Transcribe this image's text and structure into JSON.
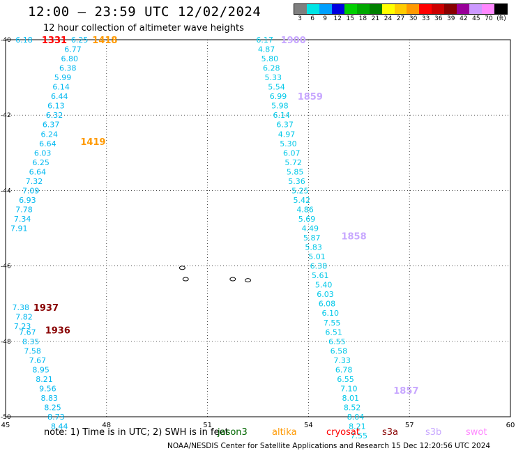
{
  "header": {
    "title": "12:00 – 23:59 UTC 12/02/2024",
    "subtitle": "12 hour collection of altimeter wave heights"
  },
  "legend": {
    "unit": "(ft)",
    "bins": [
      {
        "label": "3",
        "color": "#7f7f7f"
      },
      {
        "label": "6",
        "color": "#00e5e5"
      },
      {
        "label": "9",
        "color": "#00a0ff"
      },
      {
        "label": "12",
        "color": "#0000e0"
      },
      {
        "label": "15",
        "color": "#00d000"
      },
      {
        "label": "18",
        "color": "#00a800"
      },
      {
        "label": "21",
        "color": "#008000"
      },
      {
        "label": "24",
        "color": "#ffff00"
      },
      {
        "label": "27",
        "color": "#ffcc00"
      },
      {
        "label": "30",
        "color": "#ff9900"
      },
      {
        "label": "33",
        "color": "#ff0000"
      },
      {
        "label": "36",
        "color": "#cc0000"
      },
      {
        "label": "39",
        "color": "#880000"
      },
      {
        "label": "42",
        "color": "#990099"
      },
      {
        "label": "45",
        "color": "#cc99ff"
      },
      {
        "label": "70",
        "color": "#ff88ff"
      },
      {
        "label": "",
        "color": "#000000"
      }
    ]
  },
  "map": {
    "lon_ticks": [
      "45",
      "48",
      "51",
      "54",
      "57",
      "60"
    ],
    "lat_ticks": [
      "-40",
      "-42",
      "-44",
      "-46",
      "-48",
      "-50"
    ],
    "lon_range": [
      45,
      60
    ],
    "lat_range": [
      -40,
      -50
    ],
    "track_color": "#00c8e8",
    "time_labels": [
      {
        "text": "1331",
        "lon": 46.45,
        "lat": -40.0,
        "color": "#ff0000"
      },
      {
        "text": "1418",
        "lon": 47.95,
        "lat": -40.0,
        "color": "#ff9900"
      },
      {
        "text": "1419",
        "lon": 47.6,
        "lat": -42.7,
        "color": "#ff9900"
      },
      {
        "text": "1900",
        "lon": 53.55,
        "lat": -40.0,
        "color": "#c8a8ff"
      },
      {
        "text": "1859",
        "lon": 54.05,
        "lat": -41.5,
        "color": "#c8a8ff"
      },
      {
        "text": "1858",
        "lon": 55.35,
        "lat": -45.2,
        "color": "#c8a8ff"
      },
      {
        "text": "1857",
        "lon": 56.9,
        "lat": -49.3,
        "color": "#c8a8ff"
      },
      {
        "text": "1937",
        "lon": 46.2,
        "lat": -47.1,
        "color": "#880000"
      },
      {
        "text": "1936",
        "lon": 46.55,
        "lat": -47.7,
        "color": "#880000"
      }
    ],
    "tracks": [
      {
        "name": "",
        "color": "#00b8f0",
        "points": [
          {
            "v": "6.18",
            "lon": 45.55,
            "lat": -40.0
          },
          {
            "v": "6.25",
            "lon": 47.2,
            "lat": -40.0
          },
          {
            "v": "6.77",
            "lon": 47.0,
            "lat": -40.25
          },
          {
            "v": "6.80",
            "lon": 46.9,
            "lat": -40.5
          },
          {
            "v": "6.38",
            "lon": 46.85,
            "lat": -40.75
          },
          {
            "v": "5.99",
            "lon": 46.7,
            "lat": -41.0
          },
          {
            "v": "6.14",
            "lon": 46.65,
            "lat": -41.25
          },
          {
            "v": "6.44",
            "lon": 46.6,
            "lat": -41.5
          },
          {
            "v": "6.13",
            "lon": 46.5,
            "lat": -41.75
          },
          {
            "v": "6.32",
            "lon": 46.45,
            "lat": -42.0
          },
          {
            "v": "6.37",
            "lon": 46.35,
            "lat": -42.25
          },
          {
            "v": "6.24",
            "lon": 46.3,
            "lat": -42.5
          },
          {
            "v": "6.64",
            "lon": 46.25,
            "lat": -42.75
          },
          {
            "v": "6.03",
            "lon": 46.1,
            "lat": -43.0
          },
          {
            "v": "6.25",
            "lon": 46.05,
            "lat": -43.25
          },
          {
            "v": "6.64",
            "lon": 45.95,
            "lat": -43.5
          },
          {
            "v": "7.32",
            "lon": 45.85,
            "lat": -43.75
          },
          {
            "v": "7.09",
            "lon": 45.75,
            "lat": -44.0
          },
          {
            "v": "6.93",
            "lon": 45.65,
            "lat": -44.25
          },
          {
            "v": "7.78",
            "lon": 45.55,
            "lat": -44.5
          },
          {
            "v": "7.34",
            "lon": 45.5,
            "lat": -44.75
          },
          {
            "v": "7.91",
            "lon": 45.4,
            "lat": -45.0
          }
        ]
      },
      {
        "name": "",
        "color": "#00b8f0",
        "points": [
          {
            "v": "7.38",
            "lon": 45.45,
            "lat": -47.1
          },
          {
            "v": "7.82",
            "lon": 45.55,
            "lat": -47.35
          },
          {
            "v": "7.23",
            "lon": 45.5,
            "lat": -47.6
          },
          {
            "v": "7.67",
            "lon": 45.65,
            "lat": -47.75
          },
          {
            "v": "8.35",
            "lon": 45.75,
            "lat": -48.0
          },
          {
            "v": "7.58",
            "lon": 45.8,
            "lat": -48.25
          },
          {
            "v": "7.67",
            "lon": 45.95,
            "lat": -48.5
          },
          {
            "v": "8.95",
            "lon": 46.05,
            "lat": -48.75
          },
          {
            "v": "8.21",
            "lon": 46.15,
            "lat": -49.0
          },
          {
            "v": "9.56",
            "lon": 46.25,
            "lat": -49.25
          },
          {
            "v": "8.83",
            "lon": 46.3,
            "lat": -49.5
          },
          {
            "v": "8.25",
            "lon": 46.4,
            "lat": -49.75
          },
          {
            "v": "8.73",
            "lon": 46.5,
            "lat": -50.0
          },
          {
            "v": "8.44",
            "lon": 46.6,
            "lat": -50.25
          }
        ]
      },
      {
        "name": "",
        "color": "#00c8e8",
        "points": [
          {
            "v": "6.17",
            "lon": 52.7,
            "lat": -40.0
          },
          {
            "v": "4.87",
            "lon": 52.75,
            "lat": -40.25
          },
          {
            "v": "5.80",
            "lon": 52.85,
            "lat": -40.5
          },
          {
            "v": "6.28",
            "lon": 52.9,
            "lat": -40.75
          },
          {
            "v": "5.33",
            "lon": 52.95,
            "lat": -41.0
          },
          {
            "v": "5.54",
            "lon": 53.05,
            "lat": -41.25
          },
          {
            "v": "6.99",
            "lon": 53.1,
            "lat": -41.5
          },
          {
            "v": "5.98",
            "lon": 53.15,
            "lat": -41.75
          },
          {
            "v": "6.14",
            "lon": 53.2,
            "lat": -42.0
          },
          {
            "v": "6.37",
            "lon": 53.3,
            "lat": -42.25
          },
          {
            "v": "4.97",
            "lon": 53.35,
            "lat": -42.5
          },
          {
            "v": "5.30",
            "lon": 53.4,
            "lat": -42.75
          },
          {
            "v": "6.07",
            "lon": 53.5,
            "lat": -43.0
          },
          {
            "v": "5.72",
            "lon": 53.55,
            "lat": -43.25
          },
          {
            "v": "5.85",
            "lon": 53.6,
            "lat": -43.5
          },
          {
            "v": "5.36",
            "lon": 53.65,
            "lat": -43.75
          },
          {
            "v": "5.25",
            "lon": 53.75,
            "lat": -44.0
          },
          {
            "v": "5.42",
            "lon": 53.8,
            "lat": -44.25
          },
          {
            "v": "4.86",
            "lon": 53.9,
            "lat": -44.5
          },
          {
            "v": "5.69",
            "lon": 53.95,
            "lat": -44.75
          },
          {
            "v": "4.49",
            "lon": 54.05,
            "lat": -45.0
          },
          {
            "v": "5.87",
            "lon": 54.1,
            "lat": -45.25
          },
          {
            "v": "5.83",
            "lon": 54.15,
            "lat": -45.5
          },
          {
            "v": "5.01",
            "lon": 54.25,
            "lat": -45.75
          },
          {
            "v": "6.38",
            "lon": 54.3,
            "lat": -46.0
          },
          {
            "v": "5.61",
            "lon": 54.35,
            "lat": -46.25
          },
          {
            "v": "5.40",
            "lon": 54.45,
            "lat": -46.5
          },
          {
            "v": "6.03",
            "lon": 54.5,
            "lat": -46.75
          },
          {
            "v": "6.08",
            "lon": 54.55,
            "lat": -47.0
          },
          {
            "v": "6.10",
            "lon": 54.65,
            "lat": -47.25
          },
          {
            "v": "7.55",
            "lon": 54.7,
            "lat": -47.5
          },
          {
            "v": "6.51",
            "lon": 54.75,
            "lat": -47.75
          },
          {
            "v": "6.55",
            "lon": 54.85,
            "lat": -48.0
          },
          {
            "v": "6.58",
            "lon": 54.9,
            "lat": -48.25
          },
          {
            "v": "7.33",
            "lon": 55.0,
            "lat": -48.5
          },
          {
            "v": "6.78",
            "lon": 55.05,
            "lat": -48.75
          },
          {
            "v": "6.55",
            "lon": 55.1,
            "lat": -49.0
          },
          {
            "v": "7.10",
            "lon": 55.2,
            "lat": -49.25
          },
          {
            "v": "8.01",
            "lon": 55.25,
            "lat": -49.5
          },
          {
            "v": "8.52",
            "lon": 55.3,
            "lat": -49.75
          },
          {
            "v": "8.04",
            "lon": 55.4,
            "lat": -50.0
          },
          {
            "v": "8.21",
            "lon": 55.45,
            "lat": -50.25
          },
          {
            "v": "7.55",
            "lon": 55.5,
            "lat": -50.5
          }
        ]
      }
    ],
    "islands": [
      {
        "name": "crozet-1",
        "lon": 50.25,
        "lat": -46.05
      },
      {
        "name": "crozet-2",
        "lon": 50.35,
        "lat": -46.35
      },
      {
        "name": "crozet-3",
        "lon": 51.75,
        "lat": -46.35
      },
      {
        "name": "crozet-4",
        "lon": 52.2,
        "lat": -46.38
      }
    ]
  },
  "footer": {
    "note": "note:  1) Time is in UTC; 2) SWH is in feet",
    "satellites": [
      {
        "label": "jason3",
        "color": "#006600"
      },
      {
        "label": "altika",
        "color": "#ff9900"
      },
      {
        "label": "cryosat",
        "color": "#ff0000"
      },
      {
        "label": "s3a",
        "color": "#880000"
      },
      {
        "label": "s3b",
        "color": "#c8a8ff"
      },
      {
        "label": "swot",
        "color": "#ff88ff"
      }
    ],
    "credit": "NOAA/NESDIS Center for Satellite Applications and Research     15 Dec 12:20:56 UTC 2024"
  }
}
